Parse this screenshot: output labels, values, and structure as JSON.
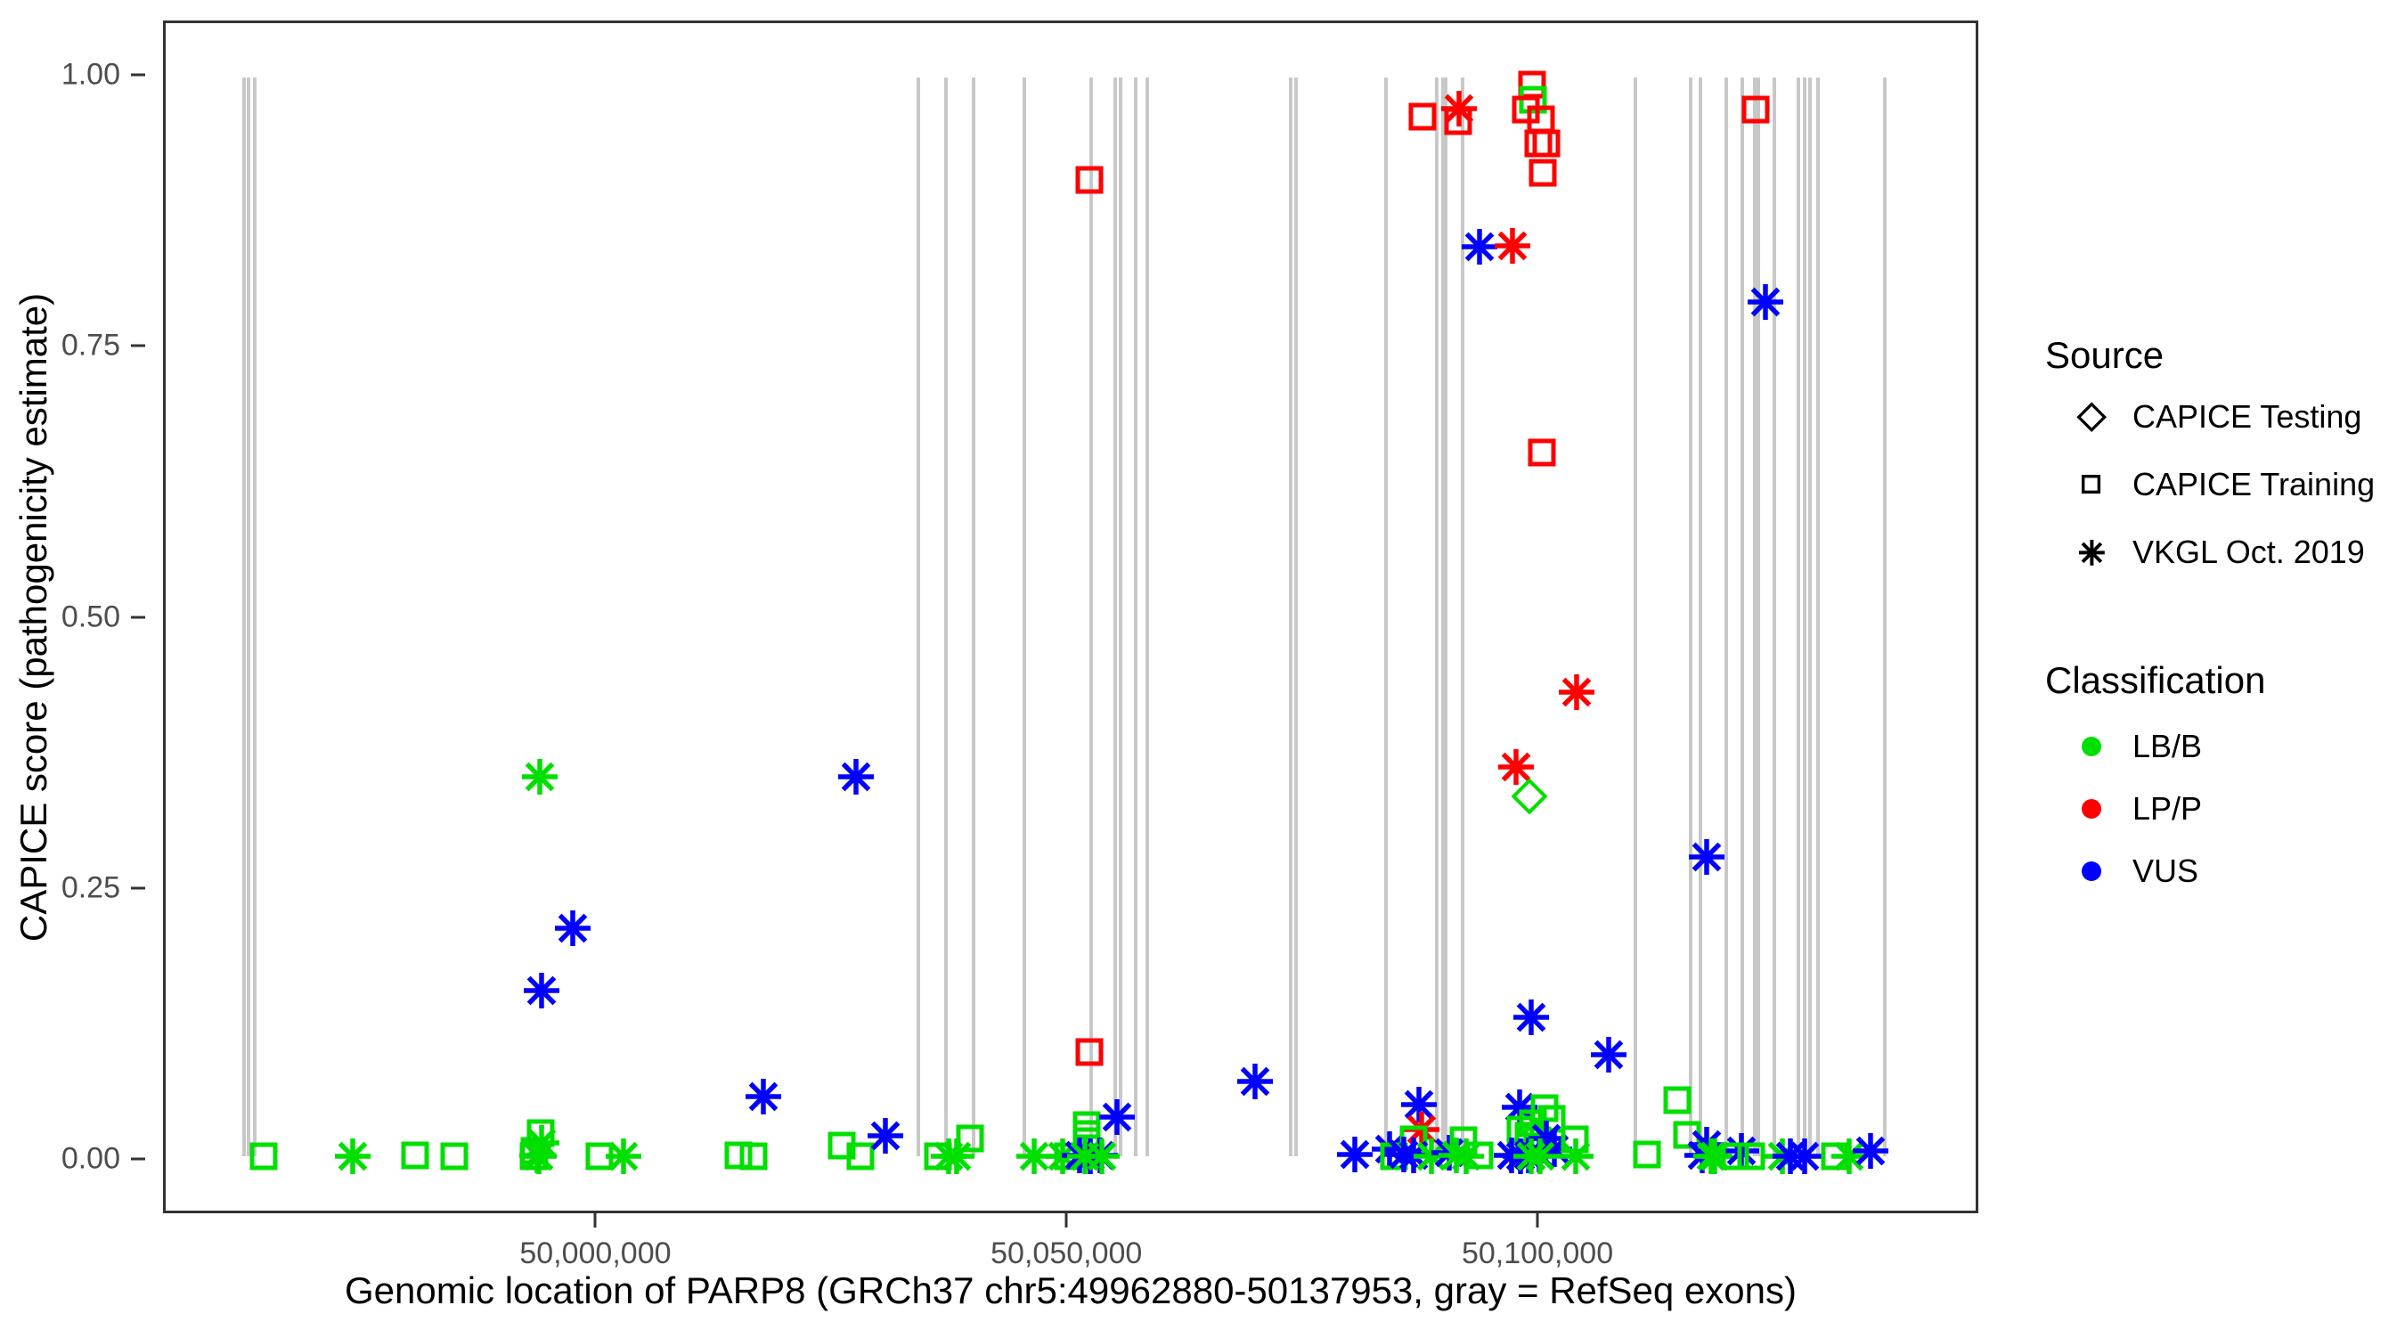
{
  "figure": {
    "y_axis_title": "CAPICE score (pathogenicity estimate)",
    "x_axis_title": "Genomic location of PARP8 (GRCh37 chr5:49962880-50137953, gray = RefSeq exons)"
  },
  "legend": {
    "source": {
      "title": "Source",
      "items": [
        {
          "icon": "diamond-outline-icon",
          "label": "CAPICE Testing"
        },
        {
          "icon": "square-outline-icon",
          "label": "CAPICE Training"
        },
        {
          "icon": "asterisk-icon",
          "label": "VKGL Oct. 2019"
        }
      ]
    },
    "classification": {
      "title": "Classification",
      "items": [
        {
          "icon": "dot-icon",
          "color": "#00df00",
          "label": "LB/B"
        },
        {
          "icon": "dot-icon",
          "color": "#ff0000",
          "label": "LP/P"
        },
        {
          "icon": "dot-icon",
          "color": "#0000ff",
          "label": "VUS"
        }
      ]
    }
  },
  "chart_data": {
    "type": "scatter",
    "title": "",
    "xlabel": "Genomic location of PARP8 (GRCh37 chr5:49962880-50137953, gray = RefSeq exons)",
    "ylabel": "CAPICE score (pathogenicity estimate)",
    "x_domain": [
      49954100,
      50146800
    ],
    "y_domain": [
      -0.05,
      1.05
    ],
    "grid": false,
    "legend_position": "right",
    "x_ticks": [
      {
        "v": 50000000,
        "label": "50,000,000"
      },
      {
        "v": 50050000,
        "label": "50,050,000"
      },
      {
        "v": 50100000,
        "label": "50,100,000"
      }
    ],
    "y_ticks": [
      {
        "v": 0.0,
        "label": "0.00"
      },
      {
        "v": 0.25,
        "label": "0.25"
      },
      {
        "v": 0.5,
        "label": "0.50"
      },
      {
        "v": 0.75,
        "label": "0.75"
      },
      {
        "v": 1.0,
        "label": "1.00"
      }
    ],
    "exon_note": "gray vertical lines = RefSeq exons, drawn from score 0 to 1",
    "exon_positions": [
      49962400,
      49962900,
      49963600,
      50034200,
      50037200,
      50040100,
      50045500,
      50052600,
      50055200,
      50055800,
      50057400,
      50058600,
      50073900,
      50074400,
      50084000,
      50089400,
      50090100,
      50090400,
      50092200,
      50110600,
      50116500,
      50117500,
      50120200,
      50122000,
      50123300,
      50123700,
      50125400,
      50127900,
      50128600,
      50129200,
      50130000,
      50137100
    ],
    "marker_key": {
      "T": "CAPICE Training (open square)",
      "X": "CAPICE Testing (open diamond)",
      "V": "VKGL Oct. 2019 (asterisk)"
    },
    "class_key": {
      "B": "LB/B",
      "P": "LP/P",
      "U": "VUS"
    },
    "class_colors": {
      "B": "#00df00",
      "P": "#ff0000",
      "U": "#0000ff"
    },
    "points": [
      [
        49964500,
        0.0,
        "T",
        "B"
      ],
      [
        49974000,
        0.0,
        "V",
        "B"
      ],
      [
        49980700,
        0.001,
        "T",
        "B"
      ],
      [
        49984800,
        0.0,
        "T",
        "B"
      ],
      [
        49994000,
        0.022,
        "T",
        "B"
      ],
      [
        49994100,
        0.013,
        "V",
        "B"
      ],
      [
        49993400,
        0.005,
        "T",
        "B"
      ],
      [
        49993600,
        0.001,
        "V",
        "B"
      ],
      [
        49993800,
        0.0,
        "V",
        "B"
      ],
      [
        49993300,
        0.0,
        "T",
        "B"
      ],
      [
        49993900,
        0.352,
        "V",
        "B"
      ],
      [
        49997400,
        0.212,
        "V",
        "U"
      ],
      [
        49994100,
        0.154,
        "V",
        "U"
      ],
      [
        50000300,
        0.0,
        "T",
        "B"
      ],
      [
        50002800,
        0.0,
        "V",
        "B"
      ],
      [
        50027600,
        0.352,
        "V",
        "U"
      ],
      [
        50017700,
        0.056,
        "V",
        "U"
      ],
      [
        50015100,
        0.001,
        "T",
        "B"
      ],
      [
        50016700,
        0.0,
        "T",
        "B"
      ],
      [
        50026100,
        0.01,
        "T",
        "B"
      ],
      [
        50028100,
        0.0,
        "T",
        "B"
      ],
      [
        50030700,
        0.019,
        "V",
        "U"
      ],
      [
        50039700,
        0.017,
        "T",
        "B"
      ],
      [
        50036300,
        0.0,
        "T",
        "B"
      ],
      [
        50037500,
        0.0,
        "V",
        "B"
      ],
      [
        50038300,
        0.0,
        "V",
        "B"
      ],
      [
        50046600,
        0.0,
        "V",
        "B"
      ],
      [
        50049600,
        0.0,
        "V",
        "B"
      ],
      [
        50052400,
        0.905,
        "T",
        "P"
      ],
      [
        50052400,
        0.097,
        "T",
        "P"
      ],
      [
        50052200,
        0.029,
        "T",
        "B"
      ],
      [
        50052200,
        0.021,
        "T",
        "B"
      ],
      [
        50052200,
        0.014,
        "T",
        "B"
      ],
      [
        50050200,
        0.0,
        "T",
        "B"
      ],
      [
        50051400,
        0.001,
        "V",
        "U"
      ],
      [
        50052500,
        0.0,
        "V",
        "U"
      ],
      [
        50053600,
        0.001,
        "V",
        "U"
      ],
      [
        50052000,
        0.0,
        "V",
        "B"
      ],
      [
        50053800,
        0.0,
        "V",
        "B"
      ],
      [
        50055400,
        0.037,
        "V",
        "U"
      ],
      [
        50070100,
        0.07,
        "V",
        "U"
      ],
      [
        50080700,
        0.002,
        "V",
        "U"
      ],
      [
        50084400,
        0.007,
        "V",
        "U"
      ],
      [
        50084900,
        0.0,
        "T",
        "B"
      ],
      [
        50087500,
        0.048,
        "V",
        "U"
      ],
      [
        50087800,
        0.025,
        "V",
        "P"
      ],
      [
        50087000,
        0.016,
        "T",
        "B"
      ],
      [
        50085900,
        0.002,
        "V",
        "U"
      ],
      [
        50087000,
        0.001,
        "V",
        "U"
      ],
      [
        50088900,
        0.0,
        "V",
        "B"
      ],
      [
        50090800,
        0.004,
        "V",
        "U"
      ],
      [
        50091500,
        0.001,
        "V",
        "B"
      ],
      [
        50092300,
        0.015,
        "T",
        "B"
      ],
      [
        50094000,
        0.001,
        "T",
        "B"
      ],
      [
        50092600,
        0.0,
        "V",
        "B"
      ],
      [
        50087900,
        0.963,
        "T",
        "P"
      ],
      [
        50091800,
        0.971,
        "V",
        "P"
      ],
      [
        50091700,
        0.959,
        "T",
        "P"
      ],
      [
        50099600,
        0.993,
        "T",
        "P"
      ],
      [
        50099700,
        0.979,
        "T",
        "B"
      ],
      [
        50098900,
        0.97,
        "T",
        "P"
      ],
      [
        50100500,
        0.961,
        "T",
        "P"
      ],
      [
        50100200,
        0.939,
        "T",
        "P"
      ],
      [
        50101100,
        0.939,
        "T",
        "P"
      ],
      [
        50100700,
        0.911,
        "T",
        "P"
      ],
      [
        50094000,
        0.843,
        "V",
        "U"
      ],
      [
        50097500,
        0.844,
        "V",
        "P"
      ],
      [
        50123400,
        0.97,
        "T",
        "P"
      ],
      [
        50124400,
        0.792,
        "V",
        "U"
      ],
      [
        50100600,
        0.652,
        "T",
        "P"
      ],
      [
        50104300,
        0.43,
        "V",
        "P"
      ],
      [
        50097900,
        0.361,
        "V",
        "P"
      ],
      [
        50099300,
        0.334,
        "X",
        "B"
      ],
      [
        50118200,
        0.278,
        "V",
        "U"
      ],
      [
        50099500,
        0.129,
        "V",
        "U"
      ],
      [
        50107700,
        0.094,
        "V",
        "U"
      ],
      [
        50098200,
        0.046,
        "V",
        "U"
      ],
      [
        50100900,
        0.045,
        "T",
        "B"
      ],
      [
        50101700,
        0.035,
        "T",
        "B"
      ],
      [
        50099700,
        0.031,
        "T",
        "B"
      ],
      [
        50098300,
        0.025,
        "T",
        "B"
      ],
      [
        50099200,
        0.019,
        "T",
        "B"
      ],
      [
        50100100,
        0.015,
        "T",
        "B"
      ],
      [
        50101100,
        0.017,
        "V",
        "U"
      ],
      [
        50097400,
        0.001,
        "V",
        "U"
      ],
      [
        50098300,
        0.0,
        "V",
        "U"
      ],
      [
        50099200,
        0.001,
        "V",
        "U"
      ],
      [
        50100300,
        0.002,
        "V",
        "U"
      ],
      [
        50101900,
        0.007,
        "V",
        "U"
      ],
      [
        50099500,
        0.0,
        "V",
        "B"
      ],
      [
        50100400,
        0.0,
        "V",
        "B"
      ],
      [
        50104100,
        0.016,
        "T",
        "B"
      ],
      [
        50104200,
        0.0,
        "V",
        "B"
      ],
      [
        50111800,
        0.002,
        "T",
        "B"
      ],
      [
        50115000,
        0.052,
        "T",
        "B"
      ],
      [
        50116100,
        0.02,
        "T",
        "B"
      ],
      [
        50118200,
        0.011,
        "V",
        "U"
      ],
      [
        50117700,
        0.001,
        "V",
        "U"
      ],
      [
        50118600,
        0.0,
        "V",
        "B"
      ],
      [
        50119000,
        0.0,
        "V",
        "B"
      ],
      [
        50121900,
        0.005,
        "V",
        "U"
      ],
      [
        50121200,
        0.0,
        "T",
        "B"
      ],
      [
        50122900,
        0.0,
        "T",
        "B"
      ],
      [
        50126200,
        0.0,
        "V",
        "B"
      ],
      [
        50127100,
        0.0,
        "V",
        "U"
      ],
      [
        50128600,
        0.0,
        "V",
        "U"
      ],
      [
        50131800,
        0.0,
        "T",
        "B"
      ],
      [
        50133300,
        0.0,
        "V",
        "B"
      ],
      [
        50135600,
        0.005,
        "V",
        "U"
      ]
    ]
  }
}
